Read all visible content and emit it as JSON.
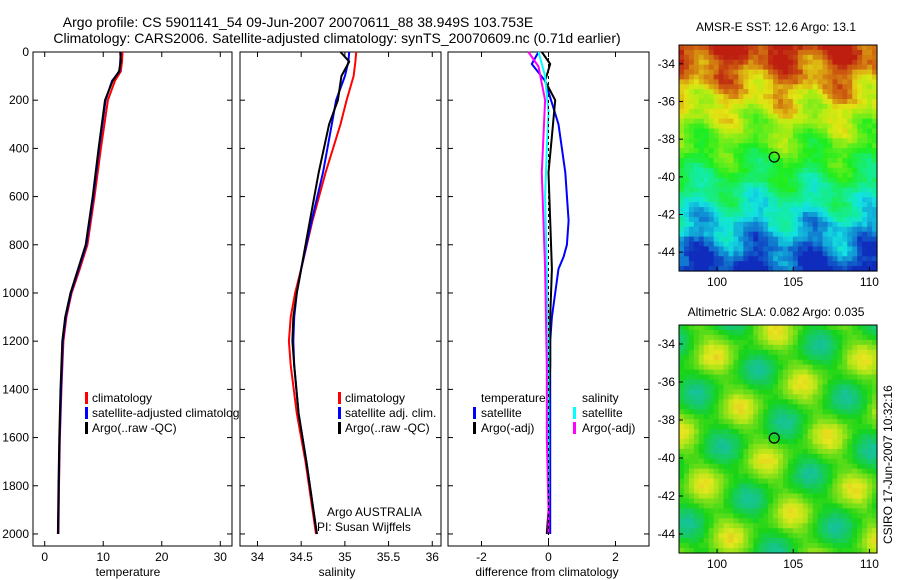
{
  "header": {
    "line1": "Argo profile: CS 5901141_54 09-Jun-2007 20070611_88 38.949S 103.753E",
    "line2": "Climatology: CARS2006. Satellite-adjusted climatology: synTS_20070609.nc (0.71d earlier)"
  },
  "colors": {
    "red": "#ff0000",
    "blue": "#0000ff",
    "black": "#000000",
    "cyan": "#00ffff",
    "magenta": "#ff00ff"
  },
  "chart_data": [
    {
      "type": "line",
      "xlabel": "temperature",
      "xlim": [
        -2,
        32
      ],
      "ylim": [
        2050,
        0
      ],
      "xticks": [
        "0",
        "10",
        "20",
        "30"
      ],
      "yticks": [
        "0",
        "200",
        "400",
        "600",
        "800",
        "1000",
        "1200",
        "1400",
        "1600",
        "1800",
        "2000"
      ],
      "legend": [
        "climatology",
        "satellite-adjusted climatology",
        "Argo(..raw -QC)"
      ],
      "series": [
        {
          "name": "climatology",
          "color": "red",
          "x": [
            13.3,
            13.2,
            13.0,
            12.0,
            10.8,
            9.6,
            8.5,
            7.3,
            6.0,
            4.6,
            3.7,
            3.2,
            2.85,
            2.6,
            2.45,
            2.35
          ],
          "y": [
            0,
            40,
            80,
            120,
            200,
            400,
            600,
            800,
            900,
            1000,
            1100,
            1200,
            1400,
            1600,
            1800,
            2000
          ]
        },
        {
          "name": "satellite-adjusted climatology",
          "color": "blue",
          "x": [
            13.0,
            12.9,
            12.8,
            11.5,
            10.4,
            9.3,
            8.3,
            7.1,
            5.8,
            4.5,
            3.6,
            3.1,
            2.8,
            2.55,
            2.4,
            2.3
          ],
          "y": [
            0,
            40,
            80,
            120,
            200,
            400,
            600,
            800,
            900,
            1000,
            1100,
            1200,
            1400,
            1600,
            1800,
            2000
          ]
        },
        {
          "name": "Argo(..raw -QC)",
          "color": "black",
          "x": [
            12.9,
            13.0,
            12.7,
            11.6,
            10.3,
            9.2,
            8.2,
            7.0,
            5.7,
            4.4,
            3.5,
            3.0,
            2.7,
            2.5,
            2.35,
            2.25
          ],
          "y": [
            0,
            40,
            80,
            120,
            200,
            400,
            600,
            800,
            900,
            1000,
            1100,
            1200,
            1400,
            1600,
            1800,
            2000
          ]
        }
      ]
    },
    {
      "type": "line",
      "xlabel": "salinity",
      "xlim": [
        33.8,
        36.1
      ],
      "ylim": [
        2050,
        0
      ],
      "xticks": [
        "34",
        "34.5",
        "35",
        "35.5",
        "36"
      ],
      "legend": [
        "climatology",
        "satellite adj. clim.",
        "Argo(..raw -QC)"
      ],
      "annotations": [
        "Argo AUSTRALIA",
        "PI: Susan Wijffels"
      ],
      "series": [
        {
          "name": "climatology",
          "color": "red",
          "x": [
            35.13,
            35.12,
            35.1,
            35.02,
            34.95,
            34.78,
            34.63,
            34.5,
            34.43,
            34.38,
            34.36,
            34.38,
            34.45,
            34.55,
            34.63,
            34.67
          ],
          "y": [
            0,
            40,
            100,
            200,
            300,
            500,
            700,
            900,
            1000,
            1100,
            1200,
            1300,
            1500,
            1700,
            1900,
            2000
          ]
        },
        {
          "name": "satellite adj. clim.",
          "color": "blue",
          "x": [
            35.05,
            35.04,
            35.0,
            34.9,
            34.85,
            34.75,
            34.62,
            34.5,
            34.45,
            34.42,
            34.41,
            34.42,
            34.47,
            34.56,
            34.64,
            34.68
          ],
          "y": [
            0,
            40,
            100,
            200,
            300,
            500,
            700,
            900,
            1000,
            1100,
            1200,
            1300,
            1500,
            1700,
            1900,
            2000
          ]
        },
        {
          "name": "Argo(..raw -QC)",
          "color": "black",
          "x": [
            34.95,
            35.05,
            34.96,
            34.92,
            34.82,
            34.7,
            34.6,
            34.5,
            34.45,
            34.41,
            34.4,
            34.42,
            34.47,
            34.56,
            34.64,
            34.68
          ],
          "y": [
            0,
            40,
            100,
            200,
            300,
            500,
            700,
            900,
            1000,
            1100,
            1200,
            1300,
            1500,
            1700,
            1900,
            2000
          ]
        }
      ]
    },
    {
      "type": "line",
      "xlabel": "difference from climatology",
      "xlim": [
        -3,
        3
      ],
      "ylim": [
        2050,
        0
      ],
      "xticks": [
        "-2",
        "0",
        "2"
      ],
      "legend_temperature": [
        "temperature",
        "satellite",
        "Argo(-adj)"
      ],
      "legend_salinity": [
        "salinity",
        "satellite",
        "Argo(-adj)"
      ],
      "series": [
        {
          "name": "temperature satellite",
          "color": "blue",
          "x": [
            -0.3,
            -0.5,
            -0.1,
            0.3,
            0.5,
            0.6,
            0.55,
            0.45,
            0.3,
            0.2,
            0.1,
            0.05,
            0.05,
            0.05,
            0.05
          ],
          "y": [
            0,
            50,
            120,
            300,
            500,
            700,
            800,
            850,
            900,
            1000,
            1100,
            1200,
            1400,
            1700,
            2000
          ]
        },
        {
          "name": "temperature Argo(-adj)",
          "color": "black",
          "x": [
            -0.2,
            0.05,
            -0.1,
            0.2,
            0.1,
            0.0,
            0.05,
            0.1,
            0.05,
            0.05,
            0.0,
            0.0,
            0.0,
            -0.05
          ],
          "y": [
            0,
            50,
            120,
            200,
            350,
            500,
            700,
            900,
            1100,
            1300,
            1500,
            1700,
            1900,
            2000
          ]
        },
        {
          "name": "salinity satellite",
          "color": "cyan",
          "x": [
            -0.3,
            -0.1,
            0.0,
            -0.05,
            -0.1,
            -0.05,
            0.0,
            0.0,
            0.0,
            0.0,
            0.0
          ],
          "y": [
            0,
            100,
            250,
            400,
            600,
            900,
            1200,
            1500,
            1800,
            1900,
            2000
          ]
        },
        {
          "name": "salinity Argo(-adj)",
          "color": "magenta",
          "x": [
            -0.6,
            -0.3,
            -0.1,
            -0.2,
            -0.1,
            -0.05,
            -0.05,
            0.0,
            0.0
          ],
          "y": [
            0,
            60,
            200,
            500,
            900,
            1300,
            1600,
            1900,
            2000
          ]
        }
      ]
    },
    {
      "type": "heatmap",
      "title": "AMSR-E SST: 12.6 Argo: 13.1",
      "xticks": [
        "100",
        "105",
        "110"
      ],
      "yticks": [
        "-34",
        "-36",
        "-38",
        "-40",
        "-42",
        "-44"
      ],
      "xlim": [
        97.5,
        110.5
      ],
      "ylim": [
        -45,
        -33
      ],
      "marker": {
        "lon": 103.753,
        "lat": -38.949
      }
    },
    {
      "type": "heatmap",
      "title": "Altimetric SLA: 0.082 Argo: 0.035",
      "xticks": [
        "100",
        "105",
        "110"
      ],
      "yticks": [
        "-34",
        "-36",
        "-38",
        "-40",
        "-42",
        "-44"
      ],
      "xlim": [
        97.5,
        110.5
      ],
      "ylim": [
        -45,
        -33
      ],
      "marker": {
        "lon": 103.753,
        "lat": -38.949
      }
    }
  ],
  "side_stamp": "CSIRO 17-Jun-2007 10:32:16"
}
